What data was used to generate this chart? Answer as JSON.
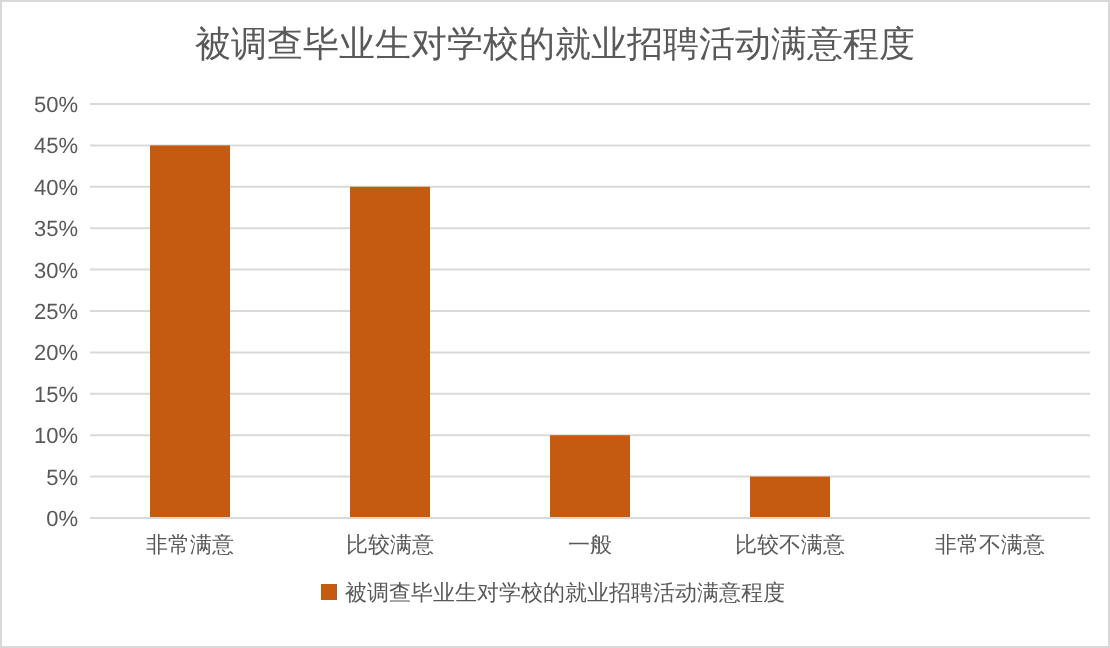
{
  "chart_data": {
    "type": "bar",
    "title": "被调查毕业生对学校的就业招聘活动满意程度",
    "categories": [
      "非常满意",
      "比较满意",
      "一般",
      "比较不满意",
      "非常不满意"
    ],
    "series": [
      {
        "name": "被调查毕业生对学校的就业招聘活动满意程度",
        "color": "#c55a11",
        "values": [
          45,
          40,
          10,
          5,
          0
        ]
      }
    ],
    "ylim": [
      0,
      50
    ],
    "yticks": [
      {
        "value": 0,
        "label": "0%"
      },
      {
        "value": 5,
        "label": "5%"
      },
      {
        "value": 10,
        "label": "10%"
      },
      {
        "value": 15,
        "label": "15%"
      },
      {
        "value": 20,
        "label": "20%"
      },
      {
        "value": 25,
        "label": "25%"
      },
      {
        "value": 30,
        "label": "30%"
      },
      {
        "value": 35,
        "label": "35%"
      },
      {
        "value": 40,
        "label": "40%"
      },
      {
        "value": 45,
        "label": "45%"
      },
      {
        "value": 50,
        "label": "50%"
      }
    ],
    "grid": "y",
    "legend": "bottom"
  }
}
